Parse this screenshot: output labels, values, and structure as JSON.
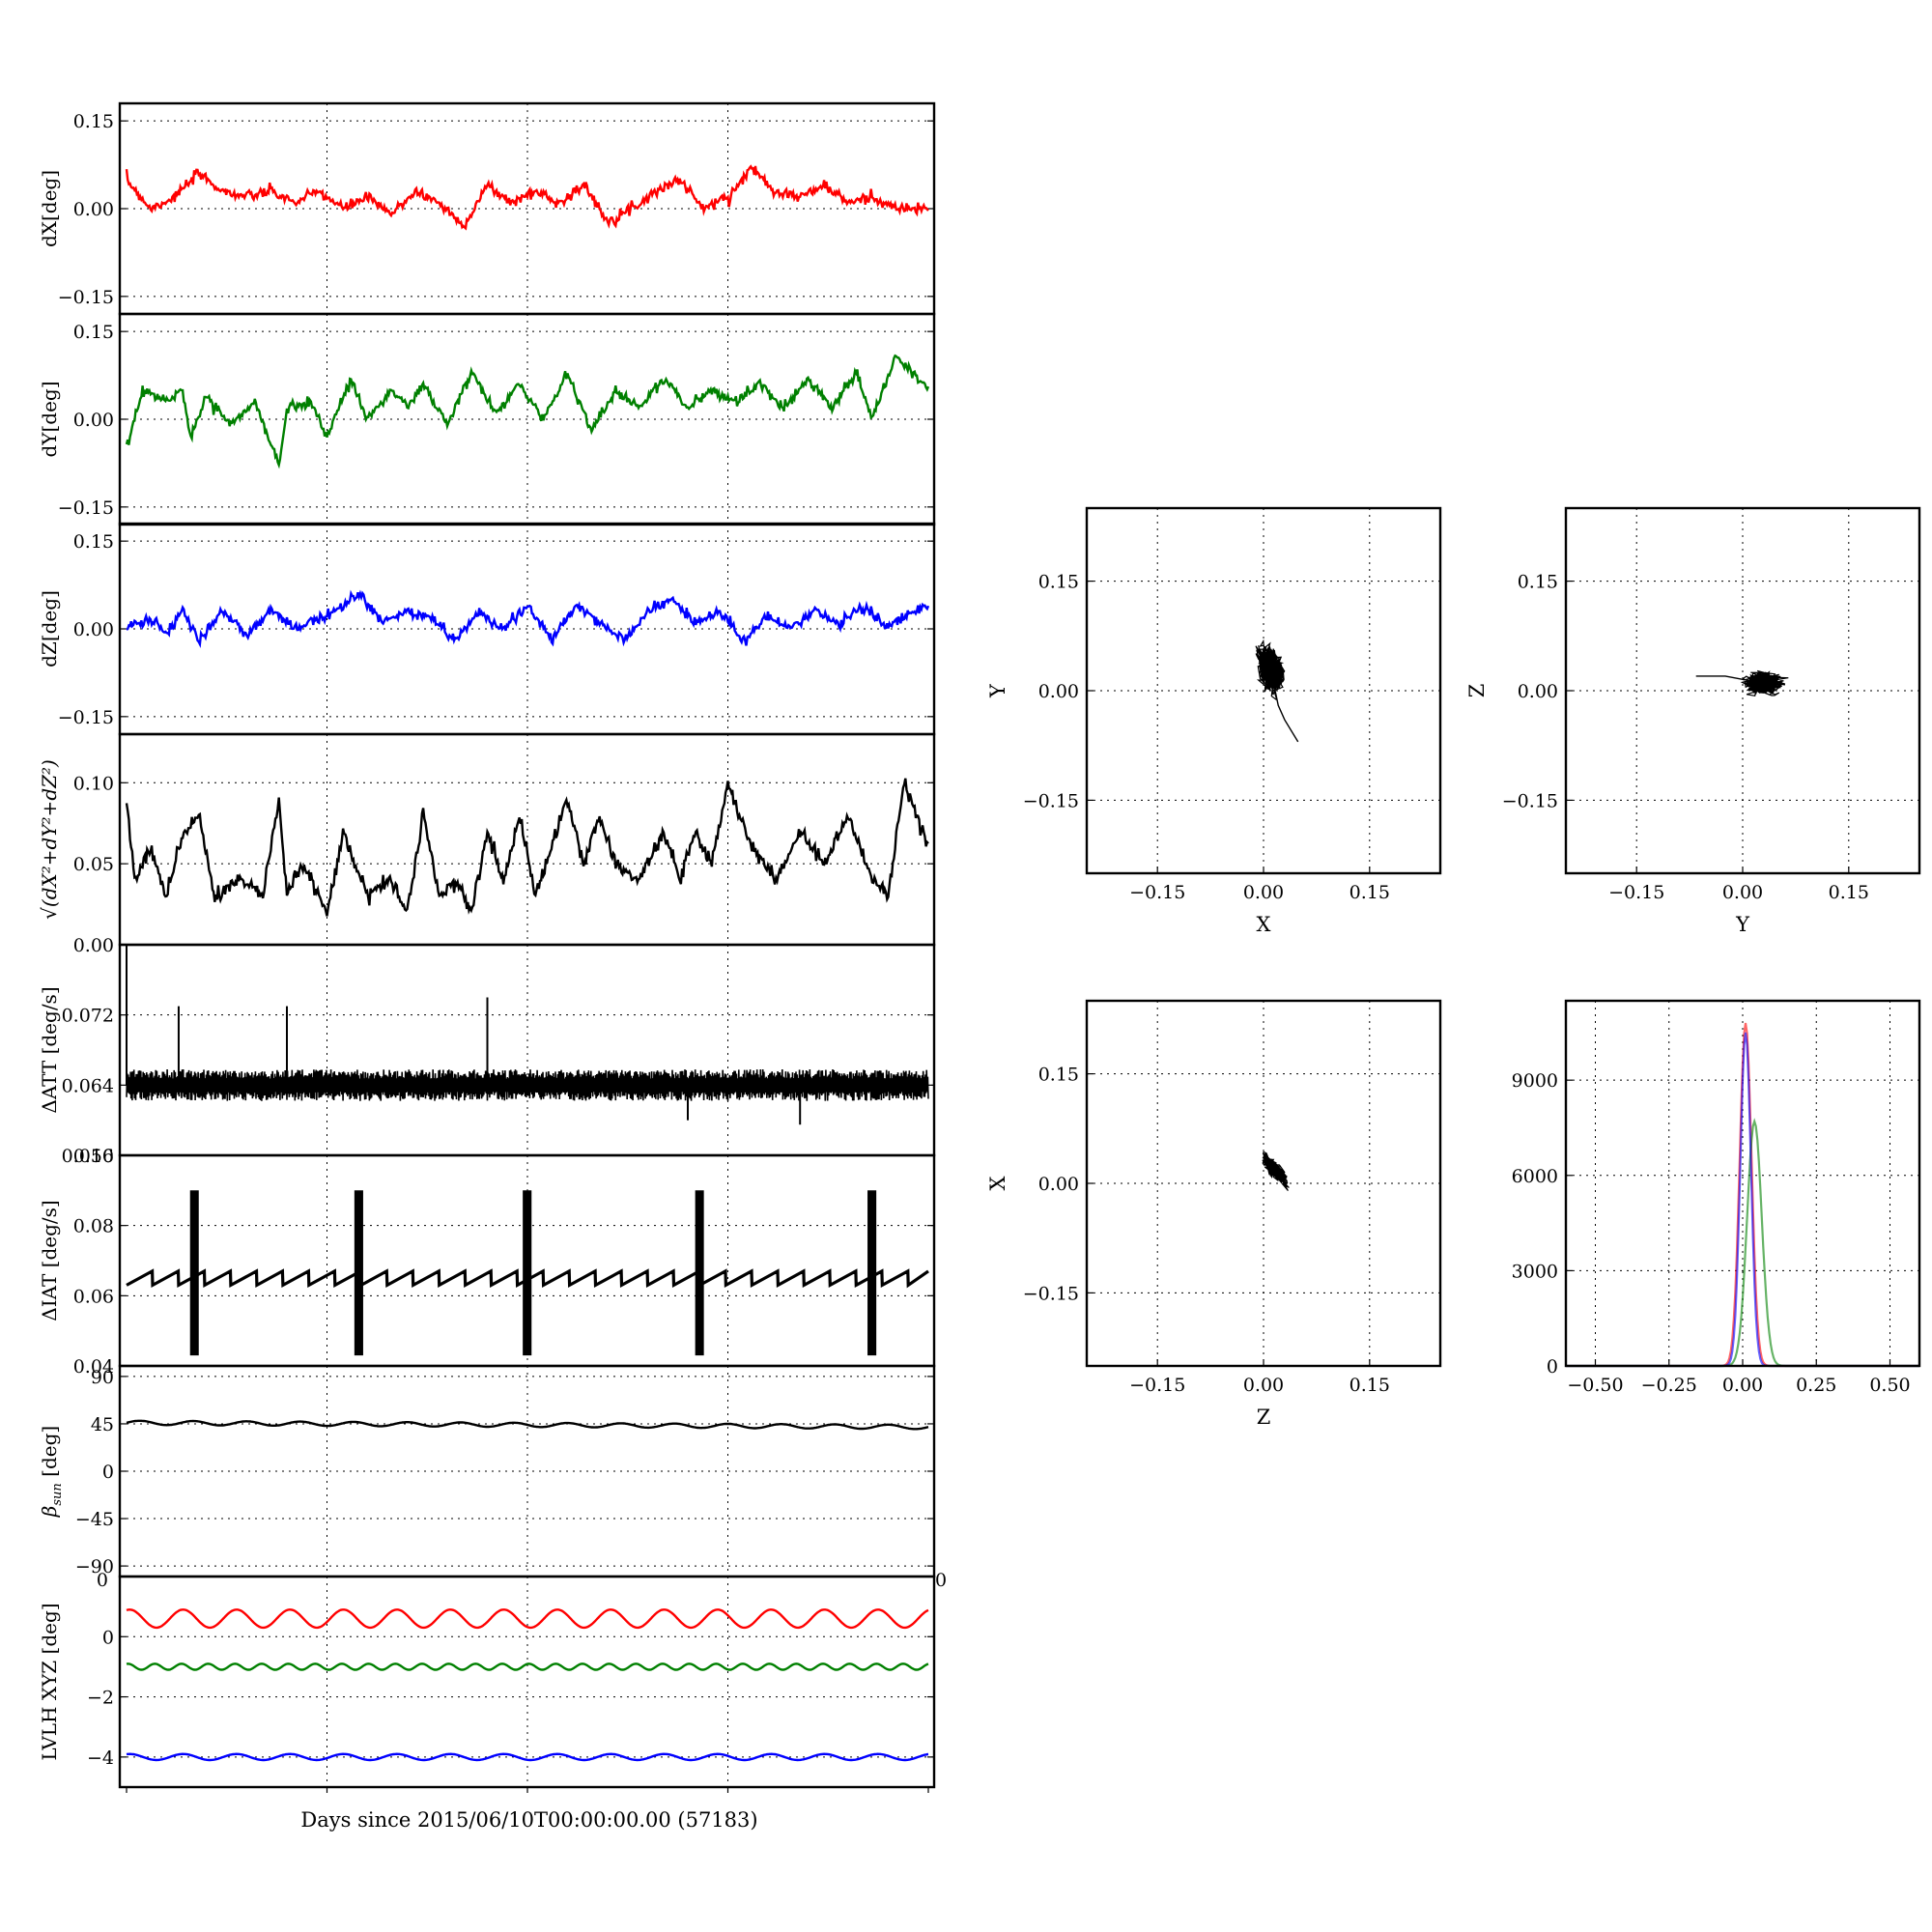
{
  "figure": {
    "xlabel": "Days since 2015/06/10T00:00:00.00 (57183)"
  },
  "colors": {
    "x": "#ff0000",
    "y": "#008000",
    "z": "#0000ff",
    "k": "#000000"
  },
  "chart_data": [
    {
      "id": "dX",
      "type": "line",
      "ylabel": "dX[deg]",
      "ylim": [
        -0.18,
        0.18
      ],
      "yticks": [
        -0.15,
        0.0,
        0.15
      ],
      "yticklabels": [
        "−0.15",
        "0.00",
        "0.15"
      ],
      "grid": true,
      "series": [
        {
          "color": "#ff0000",
          "x": [
            0,
            0.03,
            0.06,
            0.09,
            0.12,
            0.15,
            0.18,
            0.21,
            0.24,
            0.27,
            0.3,
            0.33,
            0.36,
            0.39,
            0.42,
            0.45,
            0.48,
            0.51,
            0.54,
            0.57,
            0.6,
            0.63,
            0.66,
            0.69,
            0.72,
            0.75,
            0.78,
            0.81,
            0.84,
            0.87,
            0.9,
            0.93,
            0.96,
            1.0
          ],
          "y": [
            0.05,
            0.0,
            0.02,
            0.06,
            0.03,
            0.02,
            0.03,
            0.01,
            0.03,
            0.0,
            0.02,
            -0.01,
            0.03,
            0.01,
            -0.03,
            0.04,
            0.01,
            0.03,
            0.01,
            0.04,
            -0.02,
            0.0,
            0.03,
            0.05,
            0.0,
            0.02,
            0.07,
            0.03,
            0.02,
            0.04,
            0.01,
            0.02,
            0.0,
            0.0
          ]
        }
      ]
    },
    {
      "id": "dY",
      "type": "line",
      "ylabel": "dY[deg]",
      "ylim": [
        -0.18,
        0.18
      ],
      "yticks": [
        -0.15,
        0.0,
        0.15
      ],
      "yticklabels": [
        "−0.15",
        "0.00",
        "0.15"
      ],
      "grid": true,
      "series": [
        {
          "color": "#008000",
          "x": [
            0,
            0.02,
            0.05,
            0.07,
            0.08,
            0.1,
            0.13,
            0.16,
            0.19,
            0.2,
            0.23,
            0.25,
            0.28,
            0.3,
            0.33,
            0.35,
            0.37,
            0.4,
            0.43,
            0.46,
            0.49,
            0.52,
            0.55,
            0.58,
            0.61,
            0.64,
            0.67,
            0.7,
            0.73,
            0.76,
            0.79,
            0.82,
            0.85,
            0.88,
            0.91,
            0.93,
            0.96,
            1.0
          ],
          "y": [
            -0.05,
            0.05,
            0.03,
            0.05,
            -0.03,
            0.04,
            -0.01,
            0.03,
            -0.08,
            0.02,
            0.03,
            -0.03,
            0.07,
            0.0,
            0.05,
            0.02,
            0.06,
            -0.01,
            0.08,
            0.01,
            0.06,
            0.0,
            0.08,
            -0.02,
            0.05,
            0.02,
            0.07,
            0.02,
            0.05,
            0.03,
            0.06,
            0.02,
            0.07,
            0.02,
            0.08,
            0.0,
            0.11,
            0.05
          ]
        }
      ]
    },
    {
      "id": "dZ",
      "type": "line",
      "ylabel": "dZ[deg]",
      "ylim": [
        -0.18,
        0.18
      ],
      "yticks": [
        -0.15,
        0.0,
        0.15
      ],
      "yticklabels": [
        "−0.15",
        "0.00",
        "0.15"
      ],
      "grid": true,
      "series": [
        {
          "color": "#0000ff",
          "x": [
            0,
            0.03,
            0.05,
            0.07,
            0.09,
            0.12,
            0.15,
            0.18,
            0.21,
            0.24,
            0.27,
            0.29,
            0.32,
            0.35,
            0.38,
            0.41,
            0.44,
            0.47,
            0.5,
            0.53,
            0.56,
            0.59,
            0.62,
            0.65,
            0.68,
            0.71,
            0.74,
            0.77,
            0.8,
            0.83,
            0.86,
            0.89,
            0.92,
            0.95,
            0.98,
            1.0
          ],
          "y": [
            0.0,
            0.02,
            -0.01,
            0.03,
            -0.02,
            0.03,
            -0.01,
            0.03,
            0.0,
            0.02,
            0.04,
            0.06,
            0.01,
            0.03,
            0.02,
            -0.02,
            0.03,
            0.0,
            0.04,
            -0.02,
            0.04,
            0.01,
            -0.02,
            0.03,
            0.05,
            0.01,
            0.03,
            -0.02,
            0.02,
            0.0,
            0.03,
            0.01,
            0.04,
            0.0,
            0.03,
            0.04
          ]
        }
      ]
    },
    {
      "id": "dR",
      "type": "line",
      "ylabel": "√(dX²+dY²+dZ²)",
      "ylim": [
        0.0,
        0.13
      ],
      "yticks": [
        0.0,
        0.05,
        0.1
      ],
      "yticklabels": [
        "0.00",
        "0.05",
        "0.10"
      ],
      "grid": true,
      "series": [
        {
          "color": "#000000",
          "x": [
            0,
            0.01,
            0.03,
            0.05,
            0.07,
            0.09,
            0.11,
            0.14,
            0.17,
            0.19,
            0.2,
            0.22,
            0.25,
            0.27,
            0.3,
            0.33,
            0.35,
            0.37,
            0.39,
            0.41,
            0.43,
            0.45,
            0.47,
            0.49,
            0.51,
            0.53,
            0.55,
            0.57,
            0.59,
            0.61,
            0.64,
            0.67,
            0.69,
            0.71,
            0.73,
            0.75,
            0.78,
            0.81,
            0.84,
            0.87,
            0.9,
            0.93,
            0.95,
            0.97,
            1.0
          ],
          "y": [
            0.09,
            0.04,
            0.06,
            0.03,
            0.07,
            0.08,
            0.03,
            0.04,
            0.03,
            0.09,
            0.03,
            0.05,
            0.02,
            0.07,
            0.03,
            0.04,
            0.02,
            0.08,
            0.03,
            0.04,
            0.02,
            0.07,
            0.04,
            0.08,
            0.03,
            0.06,
            0.09,
            0.05,
            0.08,
            0.05,
            0.04,
            0.07,
            0.04,
            0.07,
            0.05,
            0.1,
            0.06,
            0.04,
            0.07,
            0.05,
            0.08,
            0.04,
            0.03,
            0.1,
            0.06
          ]
        }
      ]
    },
    {
      "id": "dATT",
      "type": "line",
      "ylabel": "ΔATT [deg/s]",
      "ylim": [
        0.056,
        0.08
      ],
      "yticks": [
        0.056,
        0.064,
        0.072
      ],
      "yticklabels": [
        "0.056",
        "0.064",
        "0.072"
      ],
      "grid": true,
      "series": [
        {
          "color": "#000000",
          "base": 0.064,
          "band": 0.0015,
          "spikes_x": [
            0.0,
            0.065,
            0.13,
            0.2,
            0.45
          ],
          "spikes_y": [
            0.08,
            0.073,
            0.065,
            0.073,
            0.074
          ],
          "dips_x": [
            0.7,
            0.84
          ],
          "dips_y": [
            0.06,
            0.0595
          ]
        }
      ]
    },
    {
      "id": "dIAT",
      "type": "line",
      "ylabel": "ΔIAT [deg/s]",
      "ylim": [
        0.04,
        0.1
      ],
      "yticks": [
        0.04,
        0.06,
        0.08,
        0.1
      ],
      "yticklabels": [
        "0.04",
        "0.06",
        "0.08",
        "0.10"
      ],
      "grid": true,
      "series": [
        {
          "color": "#000000",
          "saw_low": 0.063,
          "saw_high": 0.067,
          "saw_period": 0.032,
          "bursts_x": [
            0.085,
            0.29,
            0.5,
            0.715,
            0.93
          ],
          "burst_top": 0.09,
          "burst_bottom": 0.043
        }
      ]
    },
    {
      "id": "beta",
      "type": "line",
      "ylabel": "β",
      "ylabel_sub": "sun",
      "ylabel_unit": "[deg]",
      "ylim": [
        -100,
        100
      ],
      "yticks": [
        -90,
        -45,
        0,
        45,
        90
      ],
      "yticklabels": [
        "−90",
        "−45",
        "0",
        "45",
        "90"
      ],
      "grid": true,
      "series": [
        {
          "color": "#000000",
          "mean_start": 46,
          "mean_end": 42,
          "amp": 2,
          "cycles": 15
        }
      ]
    },
    {
      "id": "lvlh",
      "type": "line",
      "ylabel": "LVLH XYZ [deg]",
      "ylim": [
        -5.0,
        2.0
      ],
      "yticks": [
        -4,
        -2,
        0
      ],
      "yticklabels": [
        "−4",
        "−2",
        "0"
      ],
      "grid": true,
      "corner_label_left": "0",
      "corner_label_right": "0",
      "series": [
        {
          "color": "#ff0000",
          "mean": 0.6,
          "amp": 0.3,
          "cycles": 15
        },
        {
          "color": "#008000",
          "mean": -1.0,
          "amp": 0.1,
          "cycles": 30
        },
        {
          "color": "#0000ff",
          "mean": -4.0,
          "amp": 0.1,
          "cycles": 15
        }
      ]
    },
    {
      "id": "XY",
      "type": "scatter",
      "xlabel": "X",
      "ylabel": "Y",
      "xlim": [
        -0.25,
        0.25
      ],
      "ylim": [
        -0.25,
        0.25
      ],
      "xticks": [
        -0.15,
        0.0,
        0.15
      ],
      "yticks": [
        -0.15,
        0.0,
        0.15
      ],
      "xticklabels": [
        "−0.15",
        "0.00",
        "0.15"
      ],
      "yticklabels": [
        "−0.15",
        "0.00",
        "0.15"
      ],
      "grid": true,
      "cloud": {
        "cx": 0.01,
        "cy": 0.03,
        "sx": 0.015,
        "sy": 0.025,
        "rho": -0.3,
        "tail_x": [
          0.02,
          0.03,
          0.05
        ],
        "tail_y": [
          -0.02,
          -0.04,
          -0.07
        ]
      }
    },
    {
      "id": "YZ",
      "type": "scatter",
      "xlabel": "Y",
      "ylabel": "Z",
      "xlim": [
        -0.25,
        0.25
      ],
      "ylim": [
        -0.25,
        0.25
      ],
      "xticks": [
        -0.15,
        0.0,
        0.15
      ],
      "yticks": [
        -0.15,
        0.0,
        0.15
      ],
      "xticklabels": [
        "−0.15",
        "0.00",
        "0.15"
      ],
      "yticklabels": [
        "−0.15",
        "0.00",
        "0.15"
      ],
      "grid": true,
      "cloud": {
        "cx": 0.03,
        "cy": 0.01,
        "sx": 0.022,
        "sy": 0.012,
        "rho": 0.1,
        "tail_x": [
          -0.02,
          -0.05,
          -0.07
        ],
        "tail_y": [
          0.02,
          0.02,
          0.02
        ]
      }
    },
    {
      "id": "ZX",
      "type": "scatter",
      "xlabel": "Z",
      "ylabel": "X",
      "xlim": [
        -0.25,
        0.25
      ],
      "ylim": [
        -0.25,
        0.25
      ],
      "xticks": [
        -0.15,
        0.0,
        0.15
      ],
      "yticks": [
        -0.15,
        0.0,
        0.15
      ],
      "xticklabels": [
        "−0.15",
        "0.00",
        "0.15"
      ],
      "yticklabels": [
        "−0.15",
        "0.00",
        "0.15"
      ],
      "grid": true,
      "cloud": {
        "cx": 0.015,
        "cy": 0.02,
        "sx": 0.014,
        "sy": 0.016,
        "rho": -0.8,
        "tail_x": [],
        "tail_y": []
      }
    },
    {
      "id": "hist",
      "type": "histogram",
      "xlim": [
        -0.6,
        0.6
      ],
      "ylim": [
        0,
        11500
      ],
      "xticks": [
        -0.5,
        -0.25,
        0.0,
        0.25,
        0.5
      ],
      "yticks": [
        0,
        3000,
        6000,
        9000
      ],
      "xticklabels": [
        "−0.50",
        "−0.25",
        "0.00",
        "0.25",
        "0.50"
      ],
      "yticklabels": [
        "0",
        "3000",
        "6000",
        "9000"
      ],
      "grid": true,
      "series": [
        {
          "color": "#ff0000",
          "center": 0.01,
          "width": 0.02,
          "peak": 10800
        },
        {
          "color": "#008000",
          "center": 0.04,
          "width": 0.025,
          "peak": 7700
        },
        {
          "color": "#0000ff",
          "center": 0.01,
          "width": 0.018,
          "peak": 10500
        }
      ]
    }
  ]
}
